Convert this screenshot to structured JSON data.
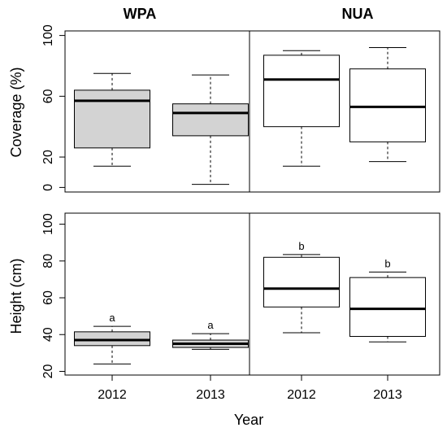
{
  "chart_data": {
    "type": "box",
    "columns": [
      "WPA",
      "NUA"
    ],
    "categories": [
      "2012",
      "2013"
    ],
    "xlabel": "Year",
    "panels": [
      {
        "ylabel": "Coverage (%)",
        "ylim": [
          -3,
          103
        ],
        "yticks": [
          "0",
          "20",
          "60",
          "100"
        ],
        "ytick_values": [
          0,
          20,
          60,
          100
        ],
        "groups": [
          {
            "column": "WPA",
            "category": "2012",
            "fill": "#d3d3d3",
            "min": 14,
            "q1": 26,
            "median": 57,
            "q3": 64,
            "max": 75,
            "letter": ""
          },
          {
            "column": "WPA",
            "category": "2013",
            "fill": "#d3d3d3",
            "min": 2,
            "q1": 34,
            "median": 49,
            "q3": 55,
            "max": 74,
            "letter": ""
          },
          {
            "column": "NUA",
            "category": "2012",
            "fill": "#ffffff",
            "min": 14,
            "q1": 40,
            "median": 71,
            "q3": 87,
            "max": 90,
            "letter": ""
          },
          {
            "column": "NUA",
            "category": "2013",
            "fill": "#ffffff",
            "min": 17,
            "q1": 30,
            "median": 53,
            "q3": 78,
            "max": 92,
            "letter": ""
          }
        ]
      },
      {
        "ylabel": "Height (cm)",
        "ylim": [
          18,
          106
        ],
        "yticks": [
          "20",
          "40",
          "60",
          "80",
          "100"
        ],
        "ytick_values": [
          20,
          40,
          60,
          80,
          100
        ],
        "groups": [
          {
            "column": "WPA",
            "category": "2012",
            "fill": "#d3d3d3",
            "min": 24,
            "q1": 34,
            "median": 37,
            "q3": 41.5,
            "max": 44.5,
            "letter": "a"
          },
          {
            "column": "WPA",
            "category": "2013",
            "fill": "#d3d3d3",
            "min": 32,
            "q1": 33,
            "median": 35,
            "q3": 37,
            "max": 40.5,
            "letter": "a"
          },
          {
            "column": "NUA",
            "category": "2012",
            "fill": "#ffffff",
            "min": 41,
            "q1": 55,
            "median": 65,
            "q3": 82,
            "max": 83.5,
            "letter": "b"
          },
          {
            "column": "NUA",
            "category": "2013",
            "fill": "#ffffff",
            "min": 36,
            "q1": 39,
            "median": 54,
            "q3": 71,
            "max": 74,
            "letter": "b"
          }
        ]
      }
    ]
  }
}
